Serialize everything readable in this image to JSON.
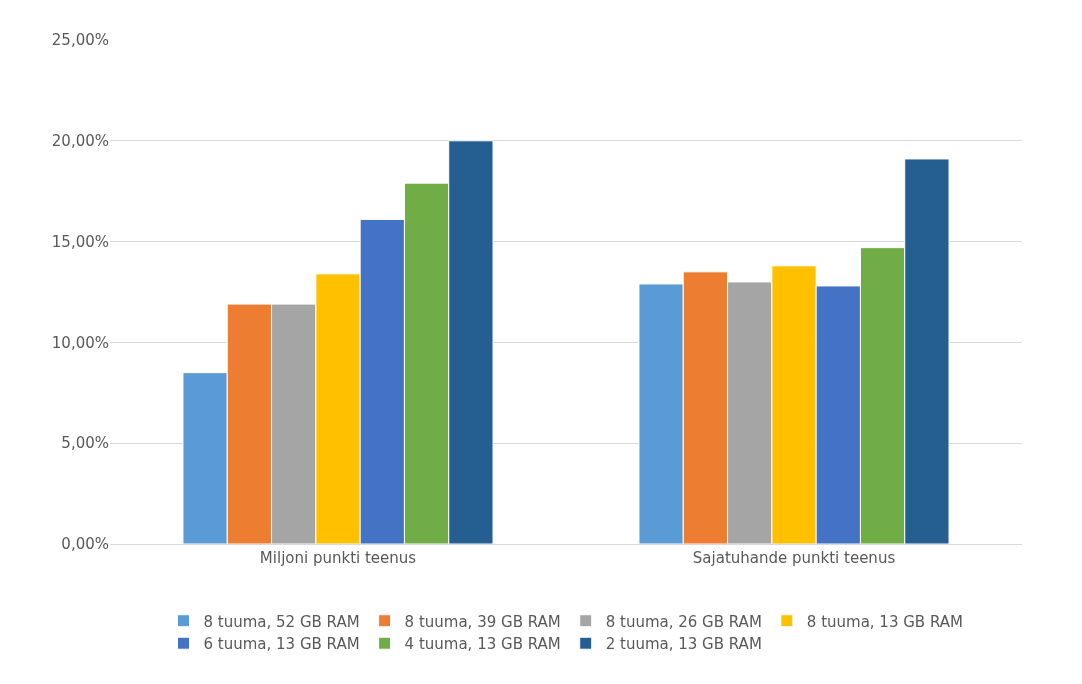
{
  "chart_data": {
    "type": "bar",
    "categories": [
      "Miljoni punkti teenus",
      "Sajatuhande punkti teenus"
    ],
    "series": [
      {
        "name": "8 tuuma, 52 GB RAM",
        "color": "#5b9bd5",
        "values": [
          8.5,
          12.9
        ]
      },
      {
        "name": "8 tuuma, 39 GB RAM",
        "color": "#ed7d31",
        "values": [
          11.9,
          13.5
        ]
      },
      {
        "name": "8 tuuma, 26 GB RAM",
        "color": "#a5a5a5",
        "values": [
          11.9,
          13.0
        ]
      },
      {
        "name": "8 tuuma, 13 GB RAM",
        "color": "#ffc000",
        "values": [
          13.4,
          13.8
        ]
      },
      {
        "name": "6 tuuma, 13 GB RAM",
        "color": "#4472c4",
        "values": [
          16.1,
          12.8
        ]
      },
      {
        "name": "4 tuuma, 13 GB RAM",
        "color": "#70ad47",
        "values": [
          17.9,
          14.7
        ]
      },
      {
        "name": "2 tuuma, 13 GB RAM",
        "color": "#255e91",
        "values": [
          20.0,
          19.1
        ]
      }
    ],
    "ylim": [
      0,
      25
    ],
    "yticks": [
      {
        "value": 0,
        "label": "0,00%"
      },
      {
        "value": 5,
        "label": "5,00%"
      },
      {
        "value": 10,
        "label": "10,00%"
      },
      {
        "value": 15,
        "label": "15,00%"
      },
      {
        "value": 20,
        "label": "20,00%"
      },
      {
        "value": 25,
        "label": "25,00%"
      }
    ],
    "grid": "y",
    "legend": "bottom"
  }
}
